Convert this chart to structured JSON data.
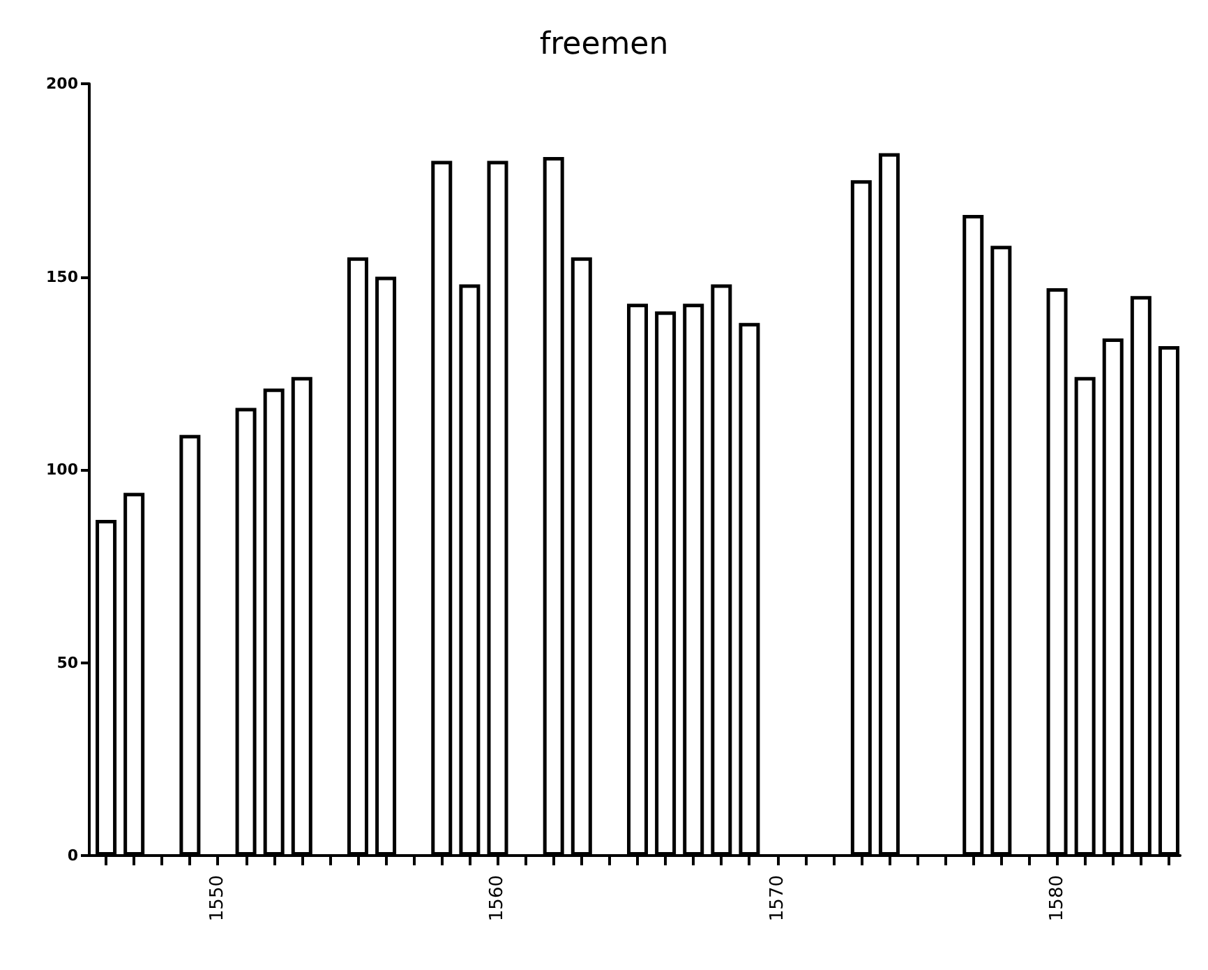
{
  "chart_data": {
    "type": "bar",
    "title": "freemen",
    "x": [
      1546,
      1547,
      1549,
      1551,
      1552,
      1553,
      1555,
      1556,
      1558,
      1559,
      1560,
      1562,
      1563,
      1565,
      1566,
      1567,
      1568,
      1569,
      1573,
      1574,
      1577,
      1578,
      1580,
      1581,
      1582,
      1583,
      1584
    ],
    "values": [
      87,
      94,
      109,
      116,
      121,
      124,
      155,
      150,
      180,
      148,
      180,
      181,
      155,
      143,
      141,
      143,
      148,
      138,
      175,
      182,
      166,
      158,
      147,
      124,
      134,
      145,
      132
    ],
    "color": "#ffffff",
    "xlim": [
      1545.4,
      1584.4
    ],
    "xticks": [
      {
        "value": 1546,
        "label": null
      },
      {
        "value": 1547,
        "label": null
      },
      {
        "value": 1548,
        "label": null
      },
      {
        "value": 1549,
        "label": null
      },
      1550,
      {
        "value": 1551,
        "label": null
      },
      {
        "value": 1552,
        "label": null
      },
      {
        "value": 1553,
        "label": null
      },
      {
        "value": 1554,
        "label": null
      },
      {
        "value": 1555,
        "label": null
      },
      {
        "value": 1556,
        "label": null
      },
      {
        "value": 1557,
        "label": null
      },
      {
        "value": 1558,
        "label": null
      },
      {
        "value": 1559,
        "label": null
      },
      1560,
      {
        "value": 1561,
        "label": null
      },
      {
        "value": 1562,
        "label": null
      },
      {
        "value": 1563,
        "label": null
      },
      {
        "value": 1564,
        "label": null
      },
      {
        "value": 1565,
        "label": null
      },
      {
        "value": 1566,
        "label": null
      },
      {
        "value": 1567,
        "label": null
      },
      {
        "value": 1568,
        "label": null
      },
      {
        "value": 1569,
        "label": null
      },
      1570,
      {
        "value": 1571,
        "label": null
      },
      {
        "value": 1572,
        "label": null
      },
      {
        "value": 1573,
        "label": null
      },
      {
        "value": 1574,
        "label": null
      },
      {
        "value": 1575,
        "label": null
      },
      {
        "value": 1576,
        "label": null
      },
      {
        "value": 1577,
        "label": null
      },
      {
        "value": 1578,
        "label": null
      },
      {
        "value": 1579,
        "label": null
      },
      1580,
      {
        "value": 1581,
        "label": null
      },
      {
        "value": 1582,
        "label": null
      },
      {
        "value": 1583,
        "label": null
      },
      {
        "value": 1584,
        "label": null
      }
    ],
    "ylim": [
      0,
      200
    ],
    "yticks": [
      0,
      50,
      100,
      150,
      200
    ]
  }
}
